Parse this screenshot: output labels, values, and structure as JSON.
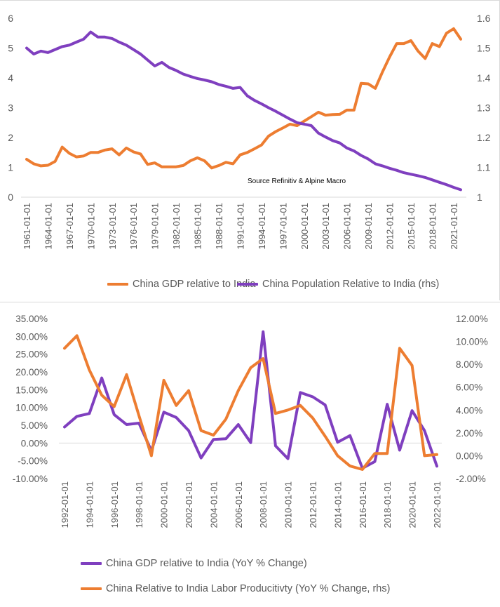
{
  "colors": {
    "orange": "#ED7D31",
    "purple": "#7F3FBF",
    "axis": "#D9D9D9",
    "text": "#595959"
  },
  "chart_data": [
    {
      "type": "line",
      "title": "",
      "annotation": "Source Refinitiv & Alpine Macro",
      "x": [
        1961,
        1962,
        1963,
        1964,
        1965,
        1966,
        1967,
        1968,
        1969,
        1970,
        1971,
        1972,
        1973,
        1974,
        1975,
        1976,
        1977,
        1978,
        1979,
        1980,
        1981,
        1982,
        1983,
        1984,
        1985,
        1986,
        1987,
        1988,
        1989,
        1990,
        1991,
        1992,
        1993,
        1994,
        1995,
        1996,
        1997,
        1998,
        1999,
        2000,
        2001,
        2002,
        2003,
        2004,
        2005,
        2006,
        2007,
        2008,
        2009,
        2010,
        2011,
        2012,
        2013,
        2014,
        2015,
        2016,
        2017,
        2018,
        2019,
        2020,
        2021,
        2022
      ],
      "tick_labels": [
        "1961-01-01",
        "1964-01-01",
        "1967-01-01",
        "1970-01-01",
        "1973-01-01",
        "1976-01-01",
        "1979-01-01",
        "1982-01-01",
        "1985-01-01",
        "1988-01-01",
        "1991-01-01",
        "1994-01-01",
        "1997-01-01",
        "2000-01-01",
        "2003-01-01",
        "2006-01-01",
        "2009-01-01",
        "2012-01-01",
        "2015-01-01",
        "2018-01-01",
        "2021-01-01"
      ],
      "ylim": [
        0,
        6
      ],
      "y_ticks": [
        "0",
        "1",
        "2",
        "3",
        "4",
        "5",
        "6"
      ],
      "y2lim": [
        1,
        1.6
      ],
      "y2_ticks": [
        "1",
        "1.1",
        "1.2",
        "1.3",
        "1.4",
        "1.5",
        "1.6"
      ],
      "series": [
        {
          "name": "China GDP relative to India",
          "axis": "left",
          "color": "#ED7D31",
          "values": [
            1.27,
            1.12,
            1.05,
            1.07,
            1.2,
            1.68,
            1.47,
            1.35,
            1.38,
            1.5,
            1.5,
            1.58,
            1.62,
            1.42,
            1.65,
            1.52,
            1.45,
            1.1,
            1.15,
            1.02,
            1.02,
            1.02,
            1.06,
            1.22,
            1.32,
            1.22,
            0.98,
            1.06,
            1.17,
            1.12,
            1.42,
            1.5,
            1.62,
            1.75,
            2.05,
            2.2,
            2.32,
            2.45,
            2.4,
            2.55,
            2.7,
            2.85,
            2.75,
            2.77,
            2.78,
            2.92,
            2.92,
            3.82,
            3.8,
            3.65,
            4.2,
            4.7,
            5.15,
            5.15,
            5.25,
            4.9,
            4.65,
            5.15,
            5.05,
            5.5,
            5.65,
            5.3
          ]
        },
        {
          "name": "China Population Relative to India (rhs)",
          "axis": "right",
          "color": "#7F3FBF",
          "values": [
            1.5,
            1.48,
            1.49,
            1.485,
            1.495,
            1.505,
            1.51,
            1.52,
            1.53,
            1.554,
            1.537,
            1.537,
            1.532,
            1.52,
            1.51,
            1.495,
            1.48,
            1.46,
            1.44,
            1.452,
            1.435,
            1.425,
            1.413,
            1.405,
            1.398,
            1.393,
            1.387,
            1.378,
            1.372,
            1.365,
            1.368,
            1.34,
            1.325,
            1.313,
            1.3,
            1.288,
            1.275,
            1.262,
            1.25,
            1.245,
            1.24,
            1.215,
            1.202,
            1.19,
            1.182,
            1.165,
            1.155,
            1.14,
            1.128,
            1.112,
            1.105,
            1.097,
            1.09,
            1.082,
            1.077,
            1.072,
            1.066,
            1.058,
            1.05,
            1.042,
            1.033,
            1.025
          ]
        }
      ]
    },
    {
      "type": "line",
      "title": "",
      "x": [
        1992,
        1993,
        1994,
        1995,
        1996,
        1997,
        1998,
        1999,
        2000,
        2001,
        2002,
        2003,
        2004,
        2005,
        2006,
        2007,
        2008,
        2009,
        2010,
        2011,
        2012,
        2013,
        2014,
        2015,
        2016,
        2017,
        2018,
        2019,
        2020,
        2021,
        2022
      ],
      "tick_labels": [
        "1992-01-01",
        "1994-01-01",
        "1996-01-01",
        "1998-01-01",
        "2000-01-01",
        "2002-01-01",
        "2004-01-01",
        "2006-01-01",
        "2008-01-01",
        "2010-01-01",
        "2012-01-01",
        "2014-01-01",
        "2016-01-01",
        "2018-01-01",
        "2020-01-01",
        "2022-01-01"
      ],
      "ylim": [
        -0.1,
        0.35
      ],
      "y_ticks": [
        "-10.00%",
        "-5.00%",
        "0.00%",
        "5.00%",
        "10.00%",
        "15.00%",
        "20.00%",
        "25.00%",
        "30.00%",
        "35.00%"
      ],
      "y2lim": [
        -0.02,
        0.12
      ],
      "y2_ticks": [
        "-2.00%",
        "0.00%",
        "2.00%",
        "4.00%",
        "6.00%",
        "8.00%",
        "10.00%",
        "12.00%"
      ],
      "series": [
        {
          "name": "China GDP relative to India (YoY % Change)",
          "axis": "left",
          "color": "#7F3FBF",
          "values": [
            0.045,
            0.075,
            0.083,
            0.183,
            0.08,
            0.052,
            0.056,
            -0.022,
            0.087,
            0.072,
            0.035,
            -0.042,
            0.01,
            0.012,
            0.052,
            0.001,
            0.313,
            -0.008,
            -0.044,
            0.142,
            0.13,
            0.107,
            0.002,
            0.021,
            -0.071,
            -0.052,
            0.109,
            -0.02,
            0.091,
            0.035,
            -0.065
          ]
        },
        {
          "name": "China Relative to India Labor Producitivty (YoY % Change, rhs)",
          "axis": "right",
          "color": "#ED7D31",
          "values": [
            0.094,
            0.105,
            0.075,
            0.053,
            0.043,
            0.071,
            0.035,
            0.0,
            0.066,
            0.044,
            0.057,
            0.022,
            0.018,
            0.032,
            0.057,
            0.077,
            0.085,
            0.037,
            0.04,
            0.044,
            0.033,
            0.017,
            0.0,
            -0.009,
            -0.012,
            0.002,
            0.002,
            0.094,
            0.079,
            0.0,
            0.001
          ]
        }
      ]
    }
  ]
}
